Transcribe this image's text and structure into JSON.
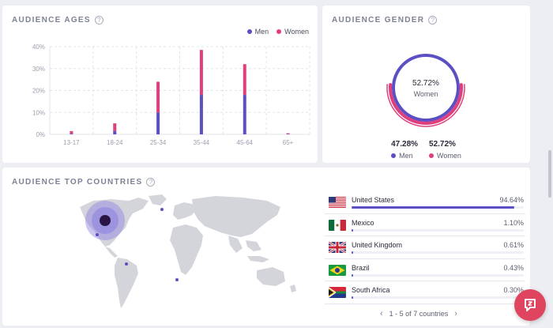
{
  "ages": {
    "title": "AUDIENCE AGES",
    "help": "?",
    "legend_men": "Men",
    "legend_women": "Women",
    "colors": {
      "men": "#5b4fc4",
      "women": "#e03f7d"
    },
    "chart_data": {
      "type": "bar",
      "stacked": true,
      "categories": [
        "13-17",
        "18-24",
        "25-34",
        "35-44",
        "45-64",
        "65+"
      ],
      "series": [
        {
          "name": "Men",
          "values": [
            0.3,
            1.5,
            10,
            18,
            18,
            0.2
          ]
        },
        {
          "name": "Women",
          "values": [
            1.2,
            3.5,
            14,
            20.5,
            14,
            0.3
          ]
        }
      ],
      "y_ticks": [
        "0%",
        "10%",
        "20%",
        "30%",
        "40%"
      ],
      "ylim": [
        0,
        40
      ],
      "grid": true
    }
  },
  "gender": {
    "title": "AUDIENCE GENDER",
    "help": "?",
    "center_value": "52.72%",
    "center_label": "Women",
    "men_value": "47.28%",
    "men_label": "Men",
    "women_value": "52.72%",
    "women_label": "Women",
    "men_fraction": 0.4728,
    "women_fraction": 0.5272
  },
  "countries": {
    "title": "AUDIENCE TOP COUNTRIES",
    "help": "?",
    "items": [
      {
        "name": "United States",
        "pct": "94.64%",
        "value": 94.64
      },
      {
        "name": "Mexico",
        "pct": "1.10%",
        "value": 1.1
      },
      {
        "name": "United Kingdom",
        "pct": "0.61%",
        "value": 0.61
      },
      {
        "name": "Brazil",
        "pct": "0.43%",
        "value": 0.43
      },
      {
        "name": "South Africa",
        "pct": "0.30%",
        "value": 0.3
      }
    ],
    "pager_text": "1 - 5 of 7 countries",
    "prev_icon": "chevron-left-icon",
    "next_icon": "chevron-right-icon"
  },
  "chat": {
    "icon": "chat-logo-icon"
  }
}
